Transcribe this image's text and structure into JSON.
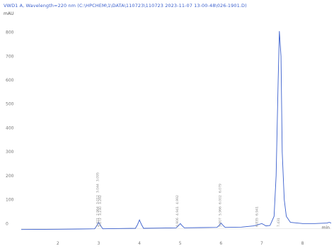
{
  "header": "VWD1 A, Wavelength=220 nm (C:\\HPCHEM\\1\\DATA\\110723\\110723 2023-11-07 13-00-48\\026-1901.D)",
  "y_unit": "mAU",
  "x_unit": "min",
  "colors": {
    "trace": "#3a5fcd",
    "header": "#3a5fcd",
    "tick": "#777777"
  },
  "chart_data": {
    "type": "line",
    "title": "VWD1 A, Wavelength=220 nm (C:\\HPCHEM\\1\\DATA\\110723\\110723 2023-11-07 13-00-48\\026-1901.D)",
    "xlabel": "min",
    "ylabel": "mAU",
    "xlim": [
      1.1,
      8.7
    ],
    "ylim": [
      -20,
      870
    ],
    "x_ticks": [
      "2",
      "3",
      "4",
      "5",
      "6",
      "7",
      "8"
    ],
    "x_tick_values": [
      2,
      3,
      4,
      5,
      6,
      7,
      8
    ],
    "y_ticks": [
      "0",
      "100",
      "200",
      "300",
      "400",
      "500",
      "600",
      "700",
      "800"
    ],
    "y_tick_values": [
      0,
      100,
      200,
      300,
      400,
      500,
      600,
      700,
      800
    ],
    "grid": false,
    "legend": "none",
    "series": [
      {
        "x": [
          1.1,
          2.0,
          2.5,
          2.9,
          2.95,
          3.0,
          3.05,
          3.1,
          3.5,
          3.9,
          3.95,
          4.0,
          4.05,
          4.1,
          4.5,
          4.9,
          4.95,
          5.0,
          5.05,
          5.1,
          5.5,
          5.9,
          5.95,
          6.0,
          6.05,
          6.1,
          6.5,
          6.8,
          6.9,
          7.0,
          7.05,
          7.1,
          7.2,
          7.3,
          7.35,
          7.4,
          7.43,
          7.47,
          7.5,
          7.55,
          7.6,
          7.7,
          8.0,
          8.3,
          8.6,
          8.65,
          8.7
        ],
        "y": [
          -25,
          -24,
          -23,
          -22,
          -10,
          5,
          -10,
          -22,
          -21,
          -20,
          -5,
          15,
          -5,
          -20,
          -19,
          -18,
          -10,
          0,
          -10,
          -18,
          -17,
          -16,
          -8,
          2,
          -8,
          -16,
          -15,
          -10,
          -5,
          0,
          -5,
          -10,
          -8,
          30,
          200,
          600,
          805,
          700,
          300,
          100,
          30,
          5,
          0,
          0,
          2,
          5,
          2
        ]
      }
    ],
    "peak_labels": [
      {
        "x": 3.0,
        "text": [
          "2.921",
          "2.964",
          "3.012",
          "3.044",
          "3.095"
        ]
      },
      {
        "x": 3.06,
        "text": [
          "3.172",
          "3.230",
          "3.292"
        ]
      },
      {
        "x": 4.95,
        "text": [
          "4.906",
          "4.941",
          "4.992"
        ]
      },
      {
        "x": 6.0,
        "text": [
          "5.907",
          "5.966",
          "6.002",
          "6.079"
        ]
      },
      {
        "x": 6.9,
        "text": [
          "6.835",
          "6.941"
        ]
      },
      {
        "x": 7.43,
        "text": [
          "7.431"
        ]
      }
    ]
  }
}
